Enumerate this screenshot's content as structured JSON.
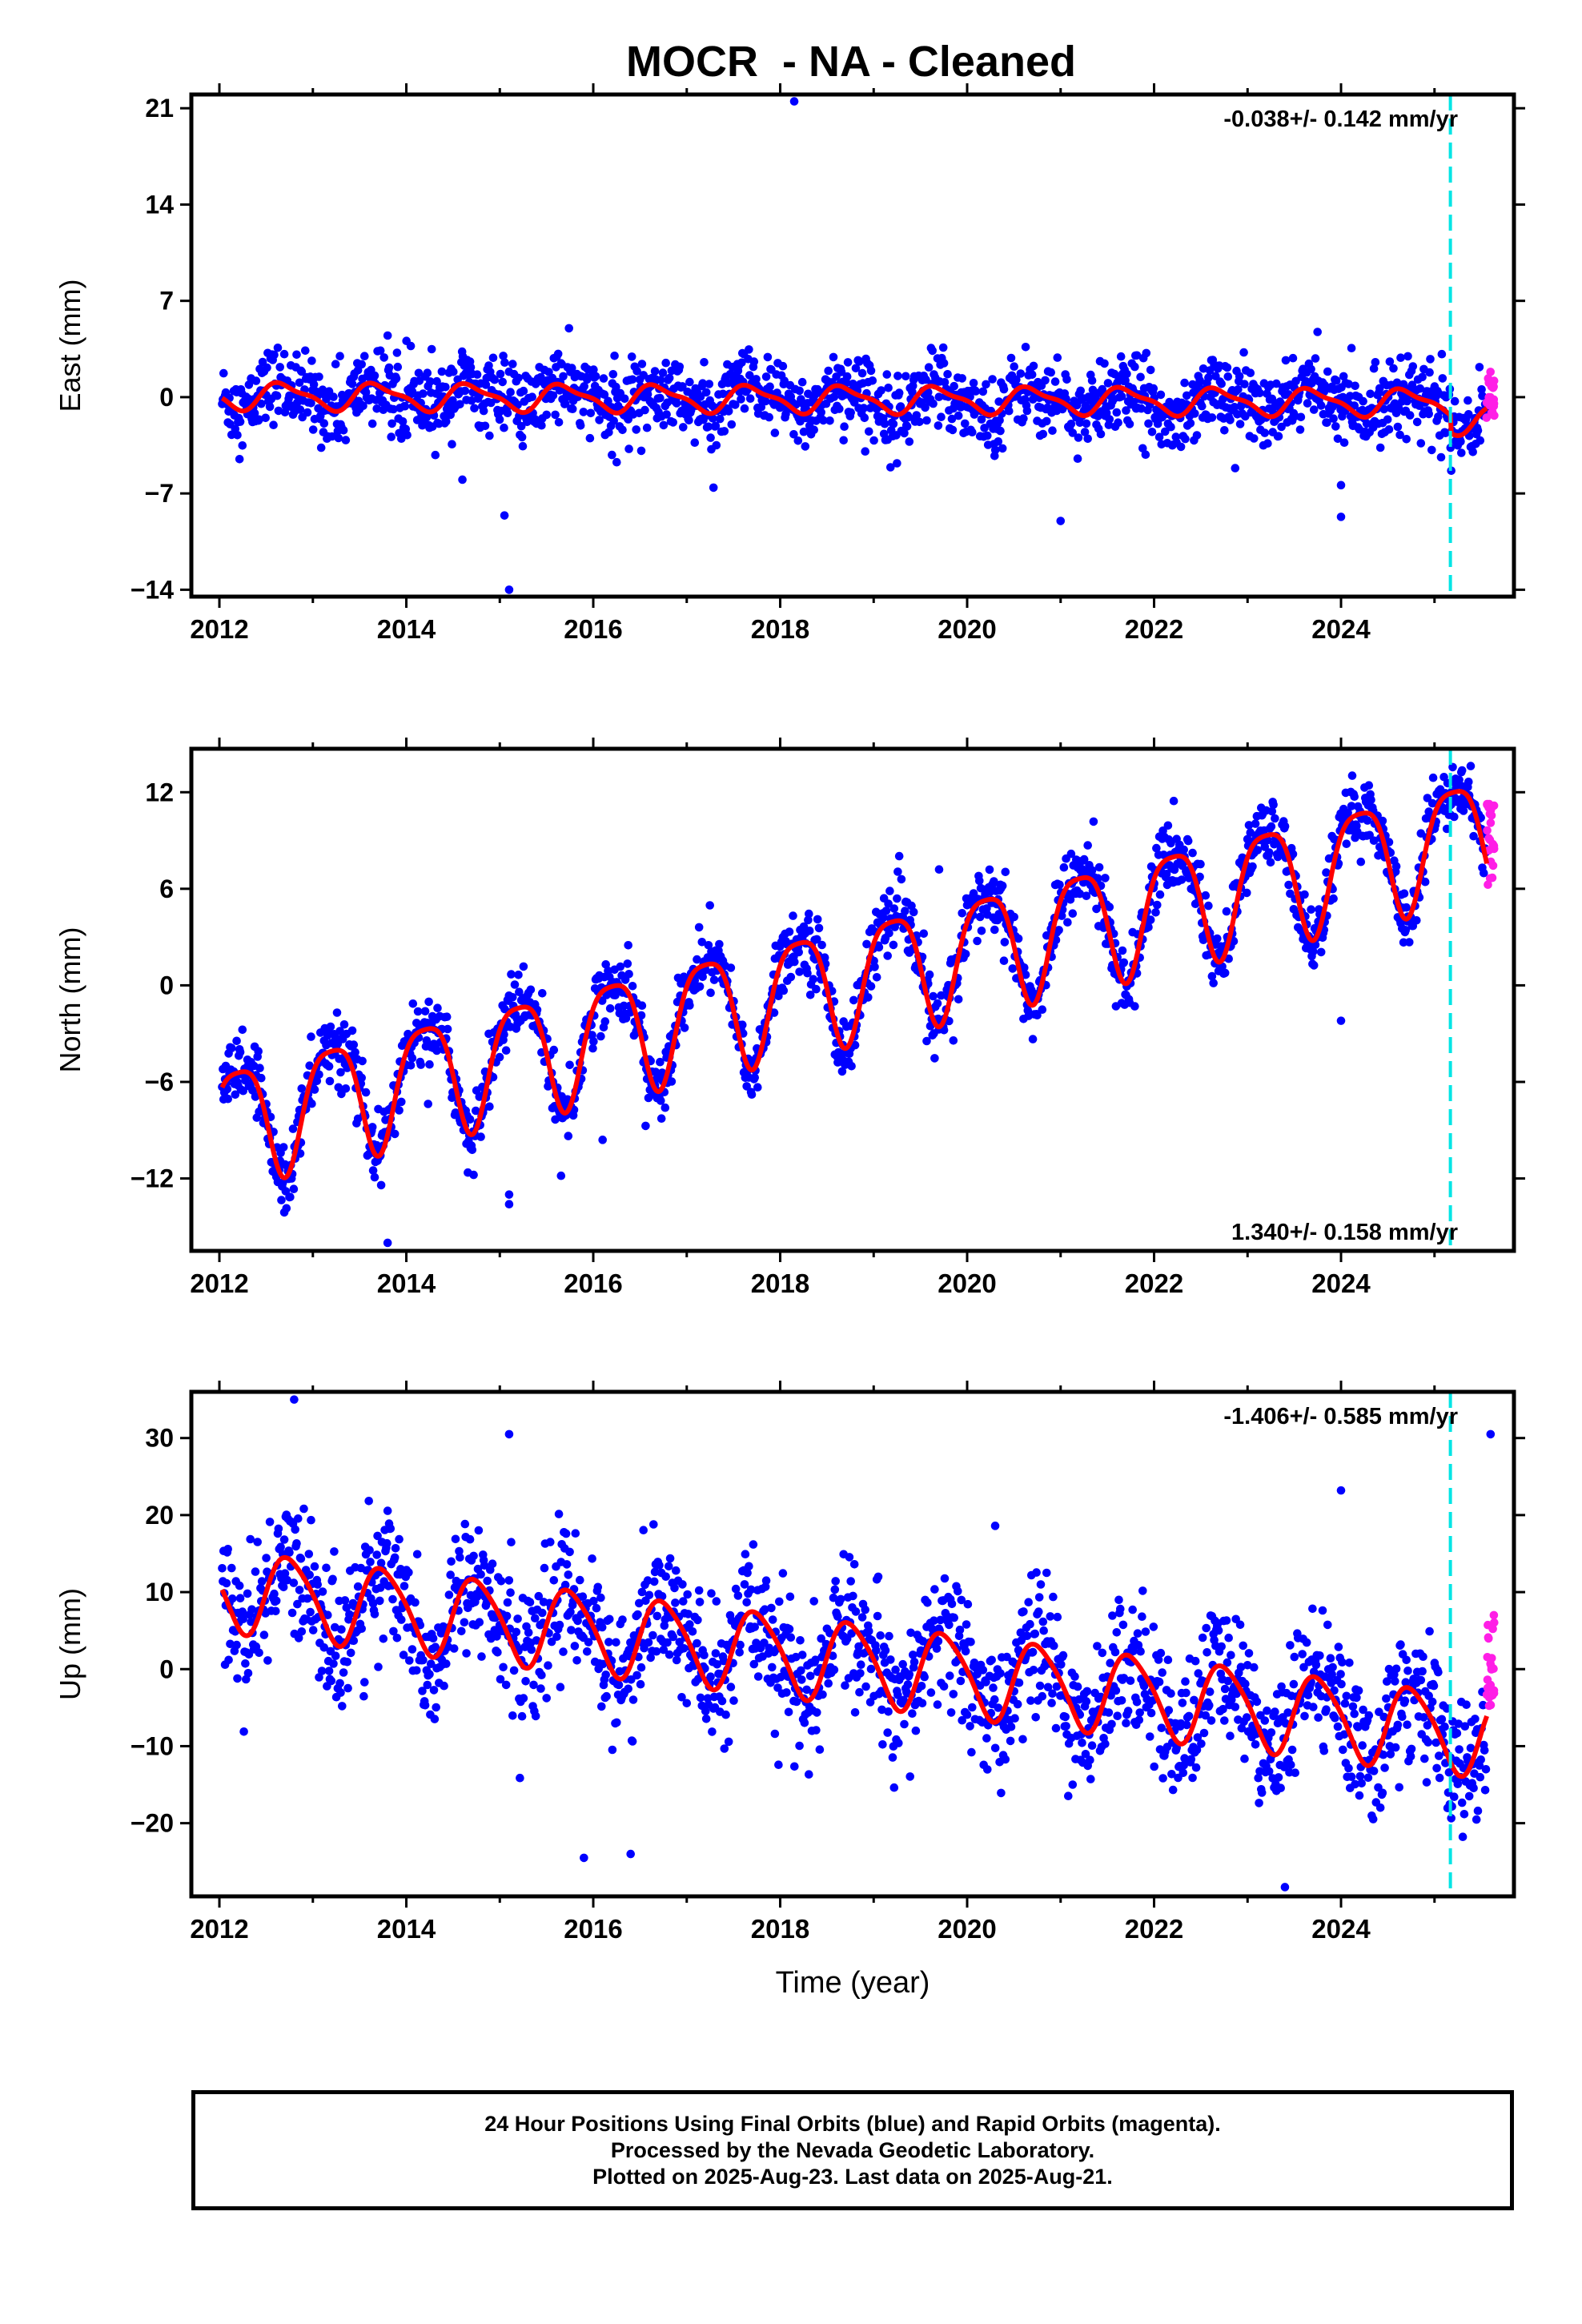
{
  "title": "MOCR  - NA - Cleaned",
  "colors": {
    "final_orbits": "#0000ff",
    "rapid_orbits": "#ff1ee6",
    "model": "#ff0000",
    "event_line": "#00e5e5",
    "frame": "#000000"
  },
  "chart_data": [
    {
      "type": "scatter",
      "component": "East",
      "ylabel": "East (mm)",
      "xlim": [
        2011.7,
        2025.85
      ],
      "ylim": [
        -14.5,
        22
      ],
      "yticks": [
        -14,
        -7,
        0,
        7,
        14,
        21
      ],
      "xticks": [
        2012,
        2014,
        2016,
        2018,
        2020,
        2022,
        2024
      ],
      "rate_label": "-0.038+/- 0.142 mm/yr",
      "rate_label_position": "top-right",
      "event_line_x": 2025.17,
      "model": {
        "offset": 0.1,
        "rate": -0.038,
        "annual_amp": 0.9,
        "annual_phase": 3.5,
        "semi_amp": 0.3,
        "semi_phase": 1.0,
        "step_at": 2025.17,
        "step": -1.3
      },
      "scatter": {
        "sigma": 1.35,
        "count": 1750,
        "start": 2012.03,
        "end": 2025.55
      },
      "rapid": {
        "count": 22,
        "start": 2025.55,
        "end": 2025.64,
        "center": 0.2,
        "spread": 1.7
      },
      "outliers": [
        [
          2018.15,
          21.5
        ],
        [
          2015.05,
          -8.6
        ],
        [
          2015.1,
          -14.0
        ],
        [
          2021.0,
          -9.0
        ],
        [
          2024.0,
          -8.7
        ],
        [
          2024.0,
          -6.4
        ],
        [
          2014.6,
          -6.0
        ],
        [
          2016.2,
          -4.2
        ]
      ]
    },
    {
      "type": "scatter",
      "component": "North",
      "ylabel": "North (mm)",
      "xlim": [
        2011.7,
        2025.85
      ],
      "ylim": [
        -16.5,
        14.7
      ],
      "yticks": [
        -12,
        -6,
        0,
        6,
        12
      ],
      "xticks": [
        2012,
        2014,
        2016,
        2018,
        2020,
        2022,
        2024
      ],
      "rate_label": "1.340+/- 0.158 mm/yr",
      "rate_label_position": "bottom-right",
      "event_line_x": 2025.17,
      "model": {
        "offset": -8.5,
        "rate": 1.34,
        "annual_amp": 3.6,
        "annual_phase": 0.3,
        "semi_amp": 0.8,
        "semi_phase": 2.2,
        "step_at": 2025.17,
        "step": 0.0
      },
      "scatter": {
        "sigma": 1.05,
        "count": 1750,
        "start": 2012.03,
        "end": 2025.55
      },
      "rapid": {
        "count": 22,
        "start": 2025.55,
        "end": 2025.64,
        "center": 8.8,
        "spread": 2.6
      },
      "outliers": [
        [
          2013.8,
          -16.0
        ],
        [
          2015.1,
          -13.6
        ],
        [
          2015.1,
          -13.0
        ],
        [
          2024.0,
          -2.2
        ],
        [
          2016.1,
          -9.6
        ],
        [
          2019.7,
          7.2
        ]
      ]
    },
    {
      "type": "scatter",
      "component": "Up",
      "ylabel": "Up (mm)",
      "xlim": [
        2011.7,
        2025.85
      ],
      "ylim": [
        -29.5,
        36
      ],
      "yticks": [
        -20,
        -10,
        0,
        10,
        20,
        30
      ],
      "xticks": [
        2012,
        2014,
        2016,
        2018,
        2020,
        2022,
        2024
      ],
      "xlabel": "Time (year)",
      "rate_label": "-1.406+/- 0.585 mm/yr",
      "rate_label_position": "top-right",
      "event_line_x": 2025.17,
      "model": {
        "offset": 10.5,
        "rate": -1.406,
        "annual_amp": 5.2,
        "annual_phase": 3.1,
        "semi_amp": 0.8,
        "semi_phase": 0.5,
        "step_at": 2025.17,
        "step": 0.0
      },
      "scatter": {
        "sigma": 4.4,
        "count": 1750,
        "start": 2012.03,
        "end": 2025.55
      },
      "rapid": {
        "count": 22,
        "start": 2025.55,
        "end": 2025.64,
        "center": 2.0,
        "spread": 8.0
      },
      "outliers": [
        [
          2012.8,
          35.0
        ],
        [
          2015.1,
          30.5
        ],
        [
          2015.9,
          -24.5
        ],
        [
          2023.4,
          -28.3
        ],
        [
          2024.0,
          23.2
        ],
        [
          2020.3,
          18.6
        ],
        [
          2025.6,
          30.5
        ],
        [
          2016.4,
          -24.0
        ]
      ]
    }
  ],
  "caption": {
    "line1": "24 Hour Positions Using Final Orbits (blue) and Rapid Orbits (magenta).",
    "line2": "Processed by the Nevada Geodetic Laboratory.",
    "line3": "Plotted on 2025-Aug-23. Last data on 2025-Aug-21."
  }
}
